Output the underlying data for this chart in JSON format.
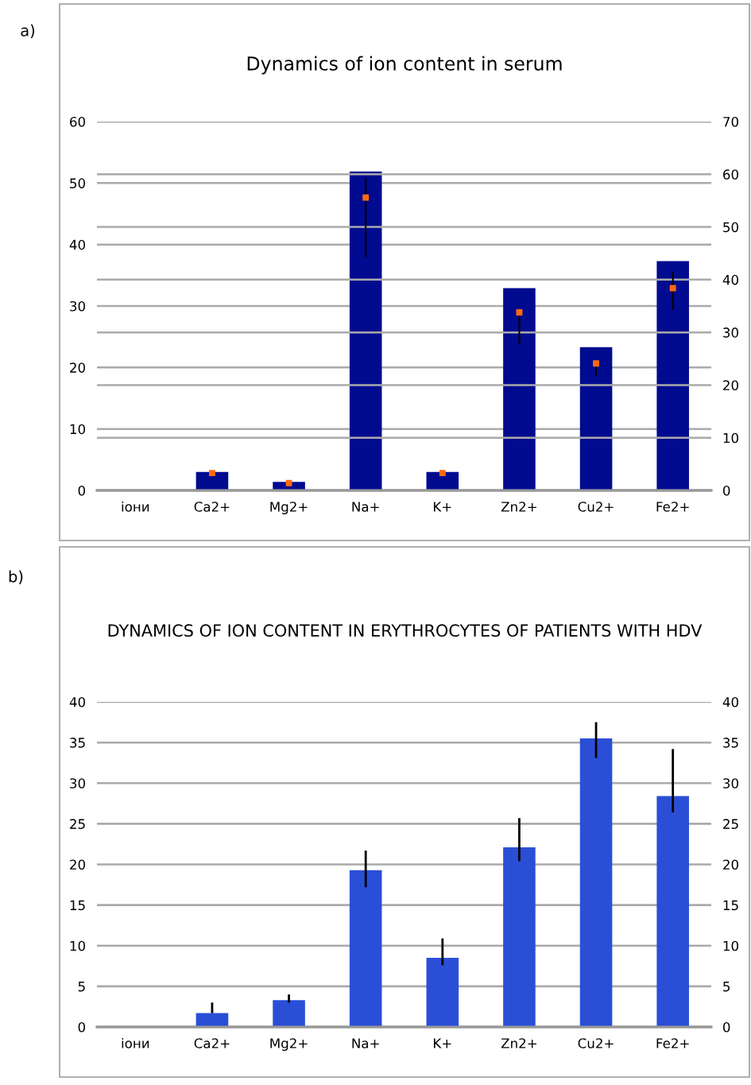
{
  "chart_data": [
    {
      "type": "bar",
      "title": "Dynamics of ion content in serum",
      "annotations": [
        "a)"
      ],
      "categories": [
        "іони",
        "Ca2+",
        "Mg2+",
        "Na+",
        "K+",
        "Zn2+",
        "Cu2+",
        "Fe2+"
      ],
      "series": [
        {
          "color": "#000b8f",
          "values": [
            null,
            3.0,
            1.4,
            51.9,
            3.0,
            32.9,
            23.3,
            37.3
          ]
        },
        {
          "type": "scatter",
          "axis": "y2",
          "color": "#ff6a13",
          "marker": "square",
          "values": [
            null,
            3.3,
            1.4,
            55.6,
            3.3,
            33.8,
            24.1,
            38.4
          ],
          "errors": [
            null,
            null,
            null,
            [
              44.3,
              59.3
            ],
            null,
            [
              27.8,
              33.8
            ],
            [
              21.8,
              24.1
            ],
            [
              34.3,
              41.5
            ]
          ]
        }
      ],
      "ylim": [
        0,
        60
      ],
      "yticks": [
        0,
        10,
        20,
        30,
        40,
        50,
        60
      ],
      "y2lim": [
        0,
        70
      ],
      "y2ticks": [
        0,
        10,
        20,
        30,
        40,
        50,
        60,
        70
      ],
      "grid": true
    },
    {
      "type": "bar",
      "title": "DYNAMICS OF ION CONTENT IN ERYTHROCYTES OF PATIENTS WITH HDV",
      "annotations": [
        "b)"
      ],
      "categories": [
        "іони",
        "Ca2+",
        "Mg2+",
        "Na+",
        "K+",
        "Zn2+",
        "Cu2+",
        "Fe2+"
      ],
      "series": [
        {
          "color": "#2a4fd6",
          "values": [
            null,
            1.7,
            3.3,
            19.3,
            8.5,
            22.1,
            35.5,
            28.4
          ],
          "errors": [
            null,
            [
              1.7,
              3.0
            ],
            [
              3.0,
              4.0
            ],
            [
              17.2,
              21.7
            ],
            [
              7.6,
              10.9
            ],
            [
              20.4,
              25.7
            ],
            [
              33.1,
              37.5
            ],
            [
              26.4,
              34.2
            ]
          ]
        }
      ],
      "ylim": [
        0,
        40
      ],
      "yticks": [
        0,
        5,
        10,
        15,
        20,
        25,
        30,
        35,
        40
      ],
      "y2lim": [
        0,
        40
      ],
      "y2ticks": [
        0,
        5,
        10,
        15,
        20,
        25,
        30,
        35,
        40
      ],
      "grid": "y"
    }
  ]
}
